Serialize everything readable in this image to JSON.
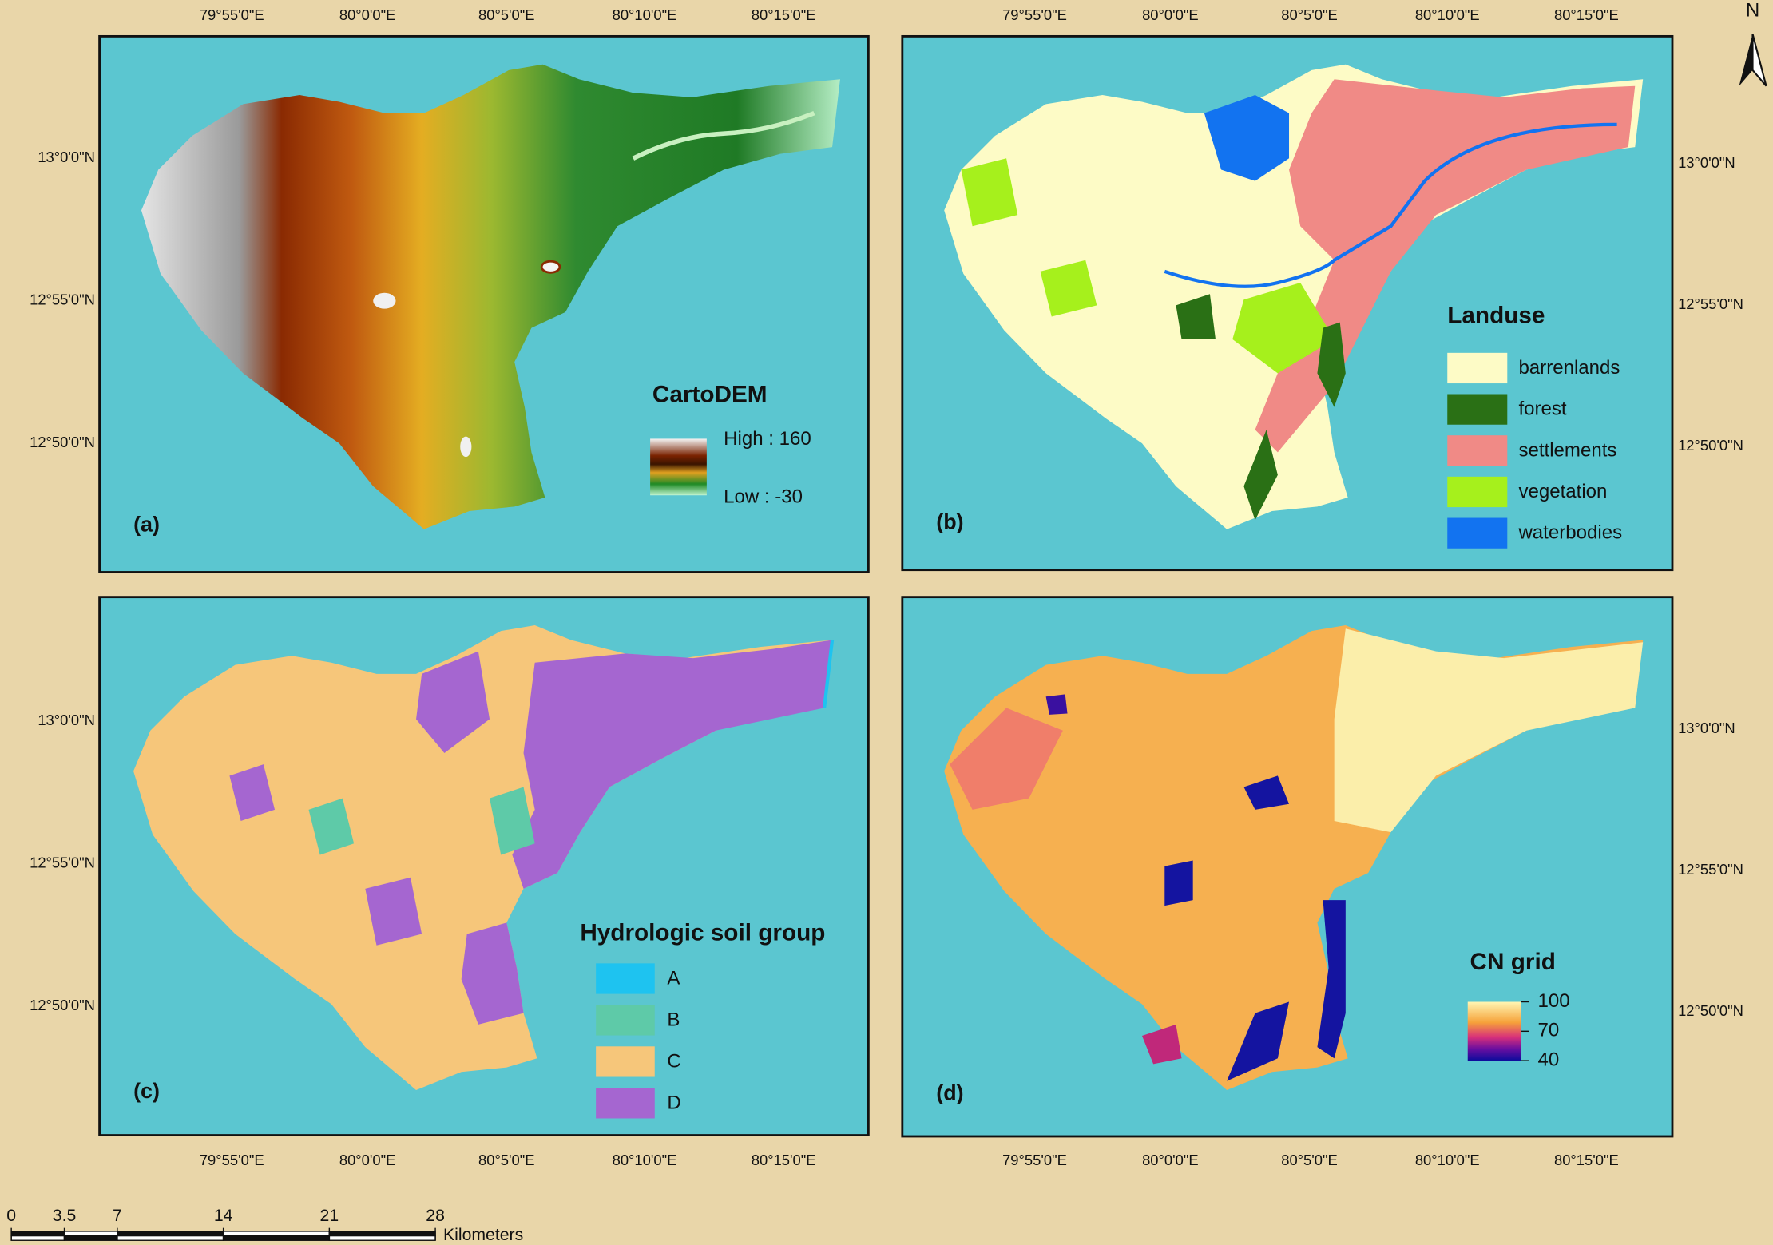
{
  "panels": [
    {
      "label": "(a)",
      "legend_title": "CartoDEM",
      "legend_high": "High : 160",
      "legend_low": "Low : -30"
    },
    {
      "label": "(b)",
      "legend_title": "Landuse",
      "legend_items": [
        {
          "name": "barrenlands",
          "color": "#fdfbc6"
        },
        {
          "name": "forest",
          "color": "#2a7015"
        },
        {
          "name": "settlements",
          "color": "#f08a86"
        },
        {
          "name": "vegetation",
          "color": "#a6f01c"
        },
        {
          "name": "waterbodies",
          "color": "#1273f0"
        }
      ]
    },
    {
      "label": "(c)",
      "legend_title": "Hydrologic soil group",
      "legend_items": [
        {
          "name": "A",
          "color": "#1ec3f0"
        },
        {
          "name": "B",
          "color": "#5ecaa8"
        },
        {
          "name": "C",
          "color": "#f6c67a"
        },
        {
          "name": "D",
          "color": "#a566d0"
        }
      ]
    },
    {
      "label": "(d)",
      "legend_title": "CN grid",
      "legend_ticks": [
        100,
        70,
        40
      ]
    }
  ],
  "longitude_labels": [
    "79°55'0\"E",
    "80°0'0\"E",
    "80°5'0\"E",
    "80°10'0\"E",
    "80°15'0\"E"
  ],
  "latitude_labels": [
    "13°0'0\"N",
    "12°55'0\"N",
    "12°50'0\"N"
  ],
  "north_arrow": "N",
  "scale_bar": {
    "ticks": [
      0,
      3.5,
      7,
      14,
      21,
      28
    ],
    "unit": "Kilometers"
  }
}
